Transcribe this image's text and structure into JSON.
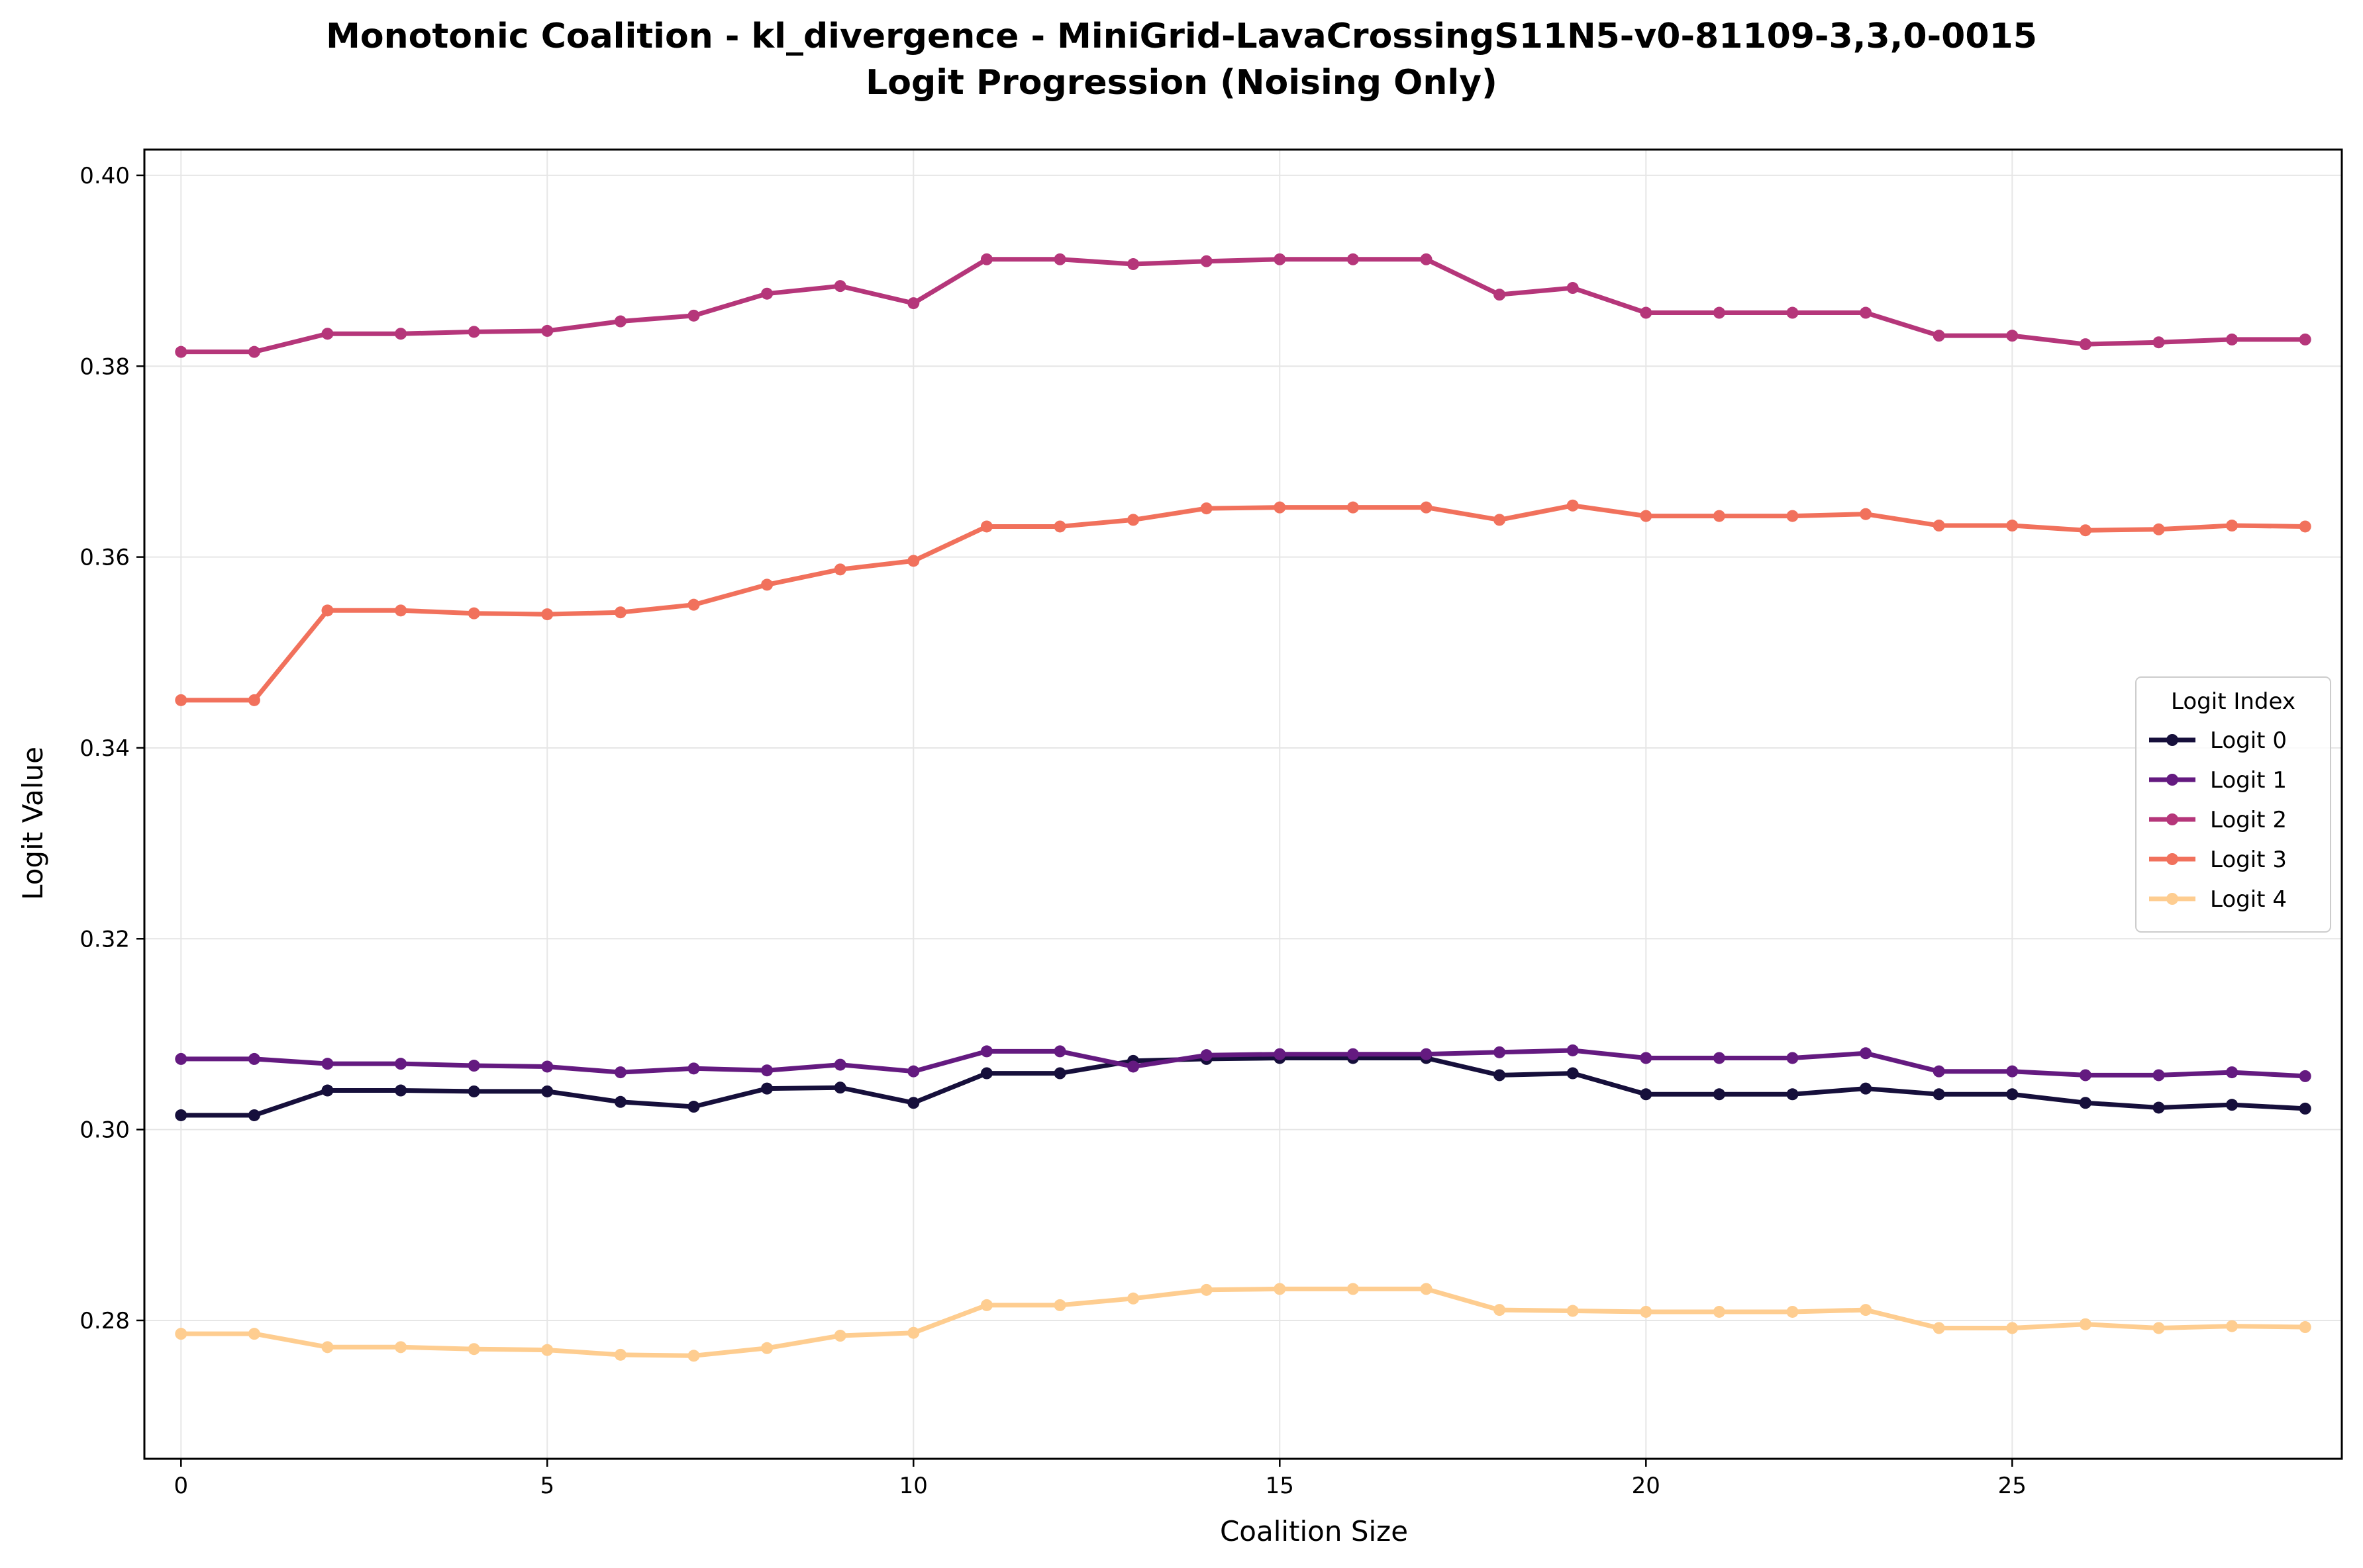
{
  "chart_data": {
    "type": "line",
    "title": "Monotonic Coalition - kl_divergence - MiniGrid-LavaCrossingS11N5-v0-81109-3,3,0-0015",
    "subtitle": "Logit Progression (Noising Only)",
    "xlabel": "Coalition Size",
    "ylabel": "Logit Value",
    "xlim": [
      -0.5,
      29.5
    ],
    "ylim": [
      0.2655,
      0.4027
    ],
    "xticks": [
      0,
      5,
      10,
      15,
      20,
      25
    ],
    "xtick_labels": [
      "0",
      "5",
      "10",
      "15",
      "20",
      "25"
    ],
    "yticks": [
      0.28,
      0.3,
      0.32,
      0.34,
      0.36,
      0.38,
      0.4
    ],
    "ytick_labels": [
      "0.28",
      "0.30",
      "0.32",
      "0.34",
      "0.36",
      "0.38",
      "0.40"
    ],
    "grid": true,
    "legend": {
      "title": "Logit Index",
      "placement": "center-right"
    },
    "x": [
      0,
      1,
      2,
      3,
      4,
      5,
      6,
      7,
      8,
      9,
      10,
      11,
      12,
      13,
      14,
      15,
      16,
      17,
      18,
      19,
      20,
      21,
      22,
      23,
      24,
      25,
      26,
      27,
      28,
      29
    ],
    "series": [
      {
        "name": "Logit 0",
        "color": "#160f3b",
        "values": [
          0.3015,
          0.3015,
          0.3041,
          0.3041,
          0.304,
          0.304,
          0.3029,
          0.3024,
          0.3043,
          0.3044,
          0.3028,
          0.3059,
          0.3059,
          0.3072,
          0.3074,
          0.3075,
          0.3075,
          0.3075,
          0.3057,
          0.3059,
          0.3037,
          0.3037,
          0.3037,
          0.3043,
          0.3037,
          0.3037,
          0.3028,
          0.3023,
          0.3026,
          0.3022
        ]
      },
      {
        "name": "Logit 1",
        "color": "#641a80",
        "values": [
          0.3074,
          0.3074,
          0.3069,
          0.3069,
          0.3067,
          0.3066,
          0.306,
          0.3064,
          0.3062,
          0.3068,
          0.3061,
          0.3082,
          0.3082,
          0.3066,
          0.3078,
          0.3079,
          0.3079,
          0.3079,
          0.3081,
          0.3083,
          0.3075,
          0.3075,
          0.3075,
          0.308,
          0.3061,
          0.3061,
          0.3057,
          0.3057,
          0.306,
          0.3056
        ]
      },
      {
        "name": "Logit 2",
        "color": "#b5367a",
        "values": [
          0.3815,
          0.3815,
          0.3834,
          0.3834,
          0.3836,
          0.3837,
          0.3847,
          0.3853,
          0.3876,
          0.3884,
          0.3866,
          0.3912,
          0.3912,
          0.3907,
          0.391,
          0.3912,
          0.3912,
          0.3912,
          0.3875,
          0.3882,
          0.3856,
          0.3856,
          0.3856,
          0.3856,
          0.3832,
          0.3832,
          0.3823,
          0.3825,
          0.3828,
          0.3828
        ]
      },
      {
        "name": "Logit 3",
        "color": "#f1715c",
        "values": [
          0.345,
          0.345,
          0.3544,
          0.3544,
          0.3541,
          0.354,
          0.3542,
          0.355,
          0.3571,
          0.3587,
          0.3596,
          0.3632,
          0.3632,
          0.3639,
          0.3651,
          0.3652,
          0.3652,
          0.3652,
          0.3639,
          0.3654,
          0.3643,
          0.3643,
          0.3643,
          0.3645,
          0.3633,
          0.3633,
          0.3628,
          0.3629,
          0.3633,
          0.3632
        ]
      },
      {
        "name": "Logit 4",
        "color": "#fecd90",
        "values": [
          0.2786,
          0.2786,
          0.2772,
          0.2772,
          0.277,
          0.2769,
          0.2764,
          0.2763,
          0.2771,
          0.2784,
          0.2787,
          0.2816,
          0.2816,
          0.2823,
          0.2832,
          0.2833,
          0.2833,
          0.2833,
          0.2811,
          0.281,
          0.2809,
          0.2809,
          0.2809,
          0.2811,
          0.2792,
          0.2792,
          0.2796,
          0.2792,
          0.2794,
          0.2793
        ]
      }
    ]
  }
}
